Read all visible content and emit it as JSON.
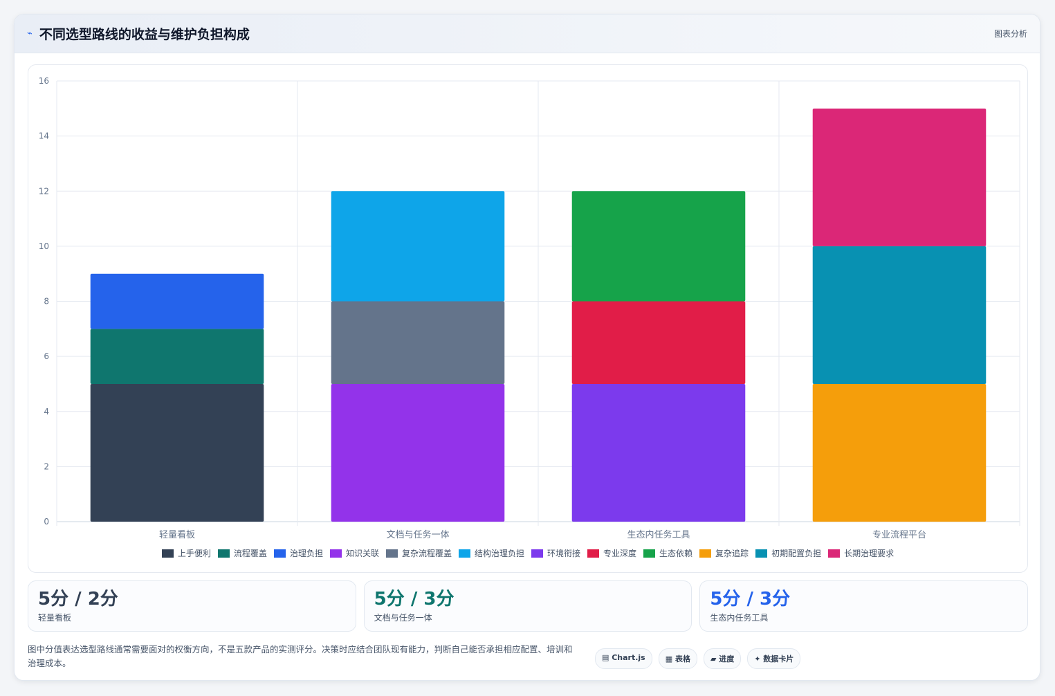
{
  "header": {
    "icon": "chart-icon",
    "title": "不同选型路线的收益与维护负担构成",
    "tag": "图表分析"
  },
  "chart_data": {
    "type": "bar",
    "stacked": true,
    "categories": [
      "轻量看板",
      "文档与任务一体",
      "生态内任务工具",
      "专业流程平台"
    ],
    "ylim": [
      0,
      16
    ],
    "yticks": [
      0,
      2,
      4,
      6,
      8,
      10,
      12,
      14,
      16
    ],
    "grid": true,
    "legend_position": "bottom",
    "series": [
      {
        "name": "上手便利",
        "color": "#334155",
        "values": [
          5,
          0,
          0,
          0
        ]
      },
      {
        "name": "流程覆盖",
        "color": "#0f766e",
        "values": [
          2,
          0,
          0,
          0
        ]
      },
      {
        "name": "治理负担",
        "color": "#2563eb",
        "values": [
          2,
          0,
          0,
          0
        ]
      },
      {
        "name": "知识关联",
        "color": "#9333ea",
        "values": [
          0,
          5,
          0,
          0
        ]
      },
      {
        "name": "复杂流程覆盖",
        "color": "#64748b",
        "values": [
          0,
          3,
          0,
          0
        ]
      },
      {
        "name": "结构治理负担",
        "color": "#0ea5e9",
        "values": [
          0,
          4,
          0,
          0
        ]
      },
      {
        "name": "环境衔接",
        "color": "#7c3aed",
        "values": [
          0,
          0,
          5,
          0
        ]
      },
      {
        "name": "专业深度",
        "color": "#e11d48",
        "values": [
          0,
          0,
          3,
          0
        ]
      },
      {
        "name": "生态依赖",
        "color": "#16a34a",
        "values": [
          0,
          0,
          4,
          0
        ]
      },
      {
        "name": "复杂追踪",
        "color": "#f59e0b",
        "values": [
          0,
          0,
          0,
          5
        ]
      },
      {
        "name": "初期配置负担",
        "color": "#0891b2",
        "values": [
          0,
          0,
          0,
          5
        ]
      },
      {
        "name": "长期治理要求",
        "color": "#db2777",
        "values": [
          0,
          0,
          0,
          5
        ]
      }
    ]
  },
  "stats": [
    {
      "value": "5分 / 2分",
      "label": "轻量看板",
      "color": "#334155"
    },
    {
      "value": "5分 / 3分",
      "label": "文档与任务一体",
      "color": "#0f766e"
    },
    {
      "value": "5分 / 3分",
      "label": "生态内任务工具",
      "color": "#2563eb"
    }
  ],
  "footer": {
    "note": "图中分值表达选型路线通常需要面对的权衡方向，不是五款产品的实测评分。决策时应结合团队现有能力，判断自己能否承担相应配置、培训和治理成本。",
    "chips": [
      "▤ Chart.js",
      "▦ 表格",
      "▰ 进度",
      "✦ 数据卡片"
    ]
  }
}
